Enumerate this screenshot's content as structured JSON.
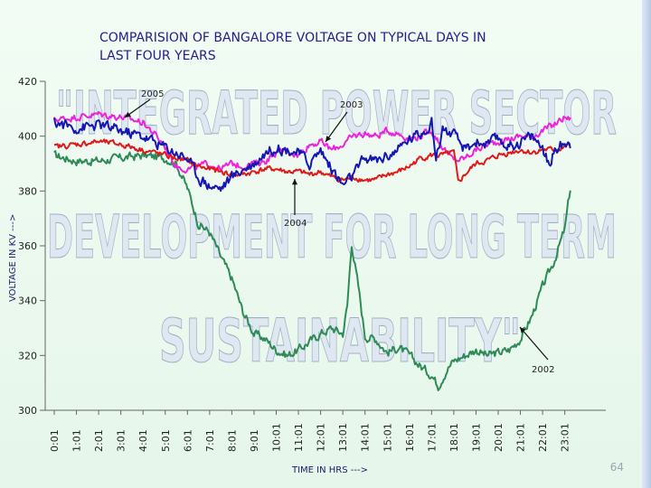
{
  "slide": {
    "page_number": "64"
  },
  "watermark": {
    "lines": [
      "\"INTEGRATED POWER SECTOR",
      "DEVELOPMENT FOR LONG TERM",
      "SUSTAINABILITY\""
    ]
  },
  "chart_data": {
    "type": "line",
    "title_lines": [
      "COMPARISION OF BANGALORE VOLTAGE ON  TYPICAL DAYS IN",
      "LAST FOUR YEARS"
    ],
    "xlabel": "TIME IN HRS --->",
    "ylabel": "VOLTAGE IN KV --->",
    "ylim": [
      300,
      420
    ],
    "yticks": [
      300,
      320,
      340,
      360,
      380,
      400,
      420
    ],
    "categories": [
      "0:01",
      "1:01",
      "2:01",
      "3:01",
      "4:01",
      "5:01",
      "6:01",
      "7:01",
      "8:01",
      "9:01",
      "10:01",
      "11:01",
      "12:01",
      "13:01",
      "14:01",
      "15:01",
      "16:01",
      "17:01",
      "18:01",
      "19:01",
      "20:01",
      "21:01",
      "22:01",
      "23:01"
    ],
    "series": [
      {
        "name": "2002",
        "color": "#2e8b57",
        "x": [
          0,
          1,
          2,
          3,
          4,
          5,
          5.5,
          6,
          6.5,
          7,
          7.5,
          8,
          8.5,
          9,
          9.5,
          10,
          10.5,
          11,
          11.5,
          12,
          12.5,
          13,
          13.2,
          13.4,
          13.7,
          14,
          14.5,
          15,
          15.5,
          16,
          16.5,
          17,
          17.3,
          17.5,
          17.7,
          18,
          18.5,
          19,
          19.5,
          20,
          20.5,
          21,
          21.5,
          22,
          22.5,
          23,
          23.3
        ],
        "values": [
          393,
          391,
          391,
          392,
          393,
          392,
          390,
          381,
          368,
          365,
          356,
          348,
          336,
          328,
          326,
          322,
          320,
          322,
          325,
          328,
          330,
          328,
          338,
          361,
          345,
          327,
          326,
          321,
          323,
          320,
          316,
          313,
          309,
          312,
          315,
          318,
          320,
          322,
          320,
          321,
          322,
          326,
          334,
          345,
          354,
          366,
          384
        ]
      },
      {
        "name": "2003",
        "color": "#ee22dd",
        "x": [
          0,
          1,
          2,
          3,
          4,
          4.5,
          5,
          5.5,
          6,
          6.5,
          7,
          7.5,
          8,
          8.5,
          9,
          9.5,
          10,
          10.5,
          11,
          11.5,
          12,
          12.5,
          13,
          13.5,
          14,
          14.5,
          15,
          15.5,
          16,
          16.5,
          17,
          17.5,
          18,
          18.5,
          19,
          19.5,
          20,
          20.5,
          21,
          21.5,
          22,
          22.5,
          23,
          23.3
        ],
        "values": [
          406,
          407,
          408,
          407,
          405,
          401,
          396,
          389,
          388,
          389,
          390,
          388,
          390,
          389,
          390,
          391,
          394,
          395,
          393,
          397,
          398,
          395,
          397,
          400,
          401,
          400,
          402,
          401,
          399,
          400,
          402,
          396,
          391,
          392,
          395,
          397,
          398,
          399,
          400,
          400,
          402,
          404,
          407,
          406
        ]
      },
      {
        "name": "2004",
        "color": "#e01a1a",
        "x": [
          0,
          1,
          2,
          3,
          4,
          5,
          6,
          6.5,
          7,
          7.5,
          8,
          8.5,
          9,
          9.5,
          10,
          10.5,
          11,
          11.5,
          12,
          12.5,
          13,
          13.5,
          14,
          14.5,
          15,
          15.5,
          16,
          16.5,
          17,
          17.5,
          18,
          18.2,
          18.5,
          19,
          19.5,
          20,
          20.5,
          21,
          21.5,
          22,
          22.5,
          23,
          23.3
        ],
        "values": [
          396,
          397,
          398,
          397,
          395,
          393,
          391,
          389,
          388,
          387,
          386,
          386,
          387,
          388,
          388,
          387,
          387,
          386,
          387,
          385,
          384,
          385,
          384,
          384,
          386,
          387,
          389,
          392,
          393,
          393,
          394,
          383,
          386,
          390,
          391,
          393,
          394,
          395,
          394,
          395,
          395,
          396,
          397
        ]
      },
      {
        "name": "2005",
        "color": "#1616b4",
        "x": [
          0,
          1,
          2,
          3,
          4,
          5,
          5.5,
          6,
          6.5,
          7,
          7.5,
          8,
          8.5,
          9,
          9.5,
          10,
          10.5,
          11,
          11.5,
          12,
          12.5,
          13,
          13.5,
          14,
          14.5,
          15,
          15.5,
          16,
          16.5,
          17,
          17.2,
          17.5,
          18,
          18.5,
          19,
          19.5,
          20,
          20.5,
          21,
          21.5,
          22,
          22.3,
          22.5,
          23,
          23.3
        ],
        "values": [
          405,
          403,
          404,
          402,
          400,
          396,
          394,
          392,
          385,
          382,
          381,
          385,
          388,
          390,
          394,
          396,
          395,
          394,
          390,
          395,
          388,
          382,
          386,
          392,
          391,
          393,
          395,
          399,
          401,
          405,
          392,
          403,
          400,
          395,
          398,
          397,
          399,
          396,
          398,
          400,
          396,
          389,
          394,
          398,
          397
        ]
      }
    ],
    "annotations": [
      {
        "label": "2005"
      },
      {
        "label": "2003"
      },
      {
        "label": "2004"
      },
      {
        "label": "2002"
      }
    ]
  }
}
